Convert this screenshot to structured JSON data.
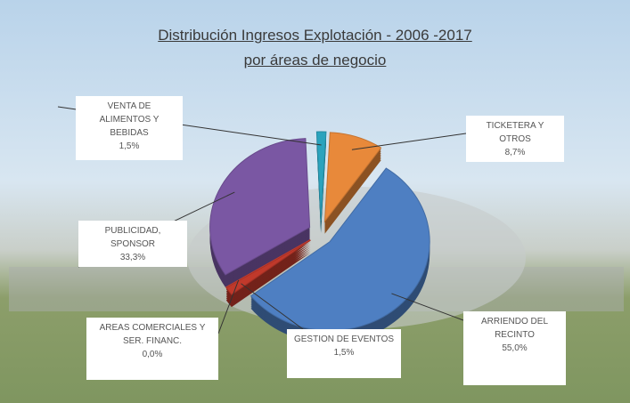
{
  "chart_data": {
    "type": "pie",
    "title": "Distribución Ingresos Explotación - 2006 -2017",
    "subtitle": "por áreas de negocio",
    "categories": [
      "TICKETERA Y OTROS",
      "ARRIENDO DEL RECINTO",
      "GESTION DE EVENTOS",
      "AREAS COMERCIALES Y SER. FINANC.",
      "PUBLICIDAD, SPONSOR",
      "VENTA DE ALIMENTOS Y BEBIDAS"
    ],
    "values": [
      8.7,
      55.0,
      1.5,
      0.0,
      33.3,
      1.5
    ],
    "value_labels": [
      "8,7%",
      "55,0%",
      "1,5%",
      "0,0%",
      "33,3%",
      "1,5%"
    ],
    "colors": [
      "#e8893a",
      "#4e7fc2",
      "#c0392b",
      "#c0392b",
      "#7a57a3",
      "#2ba3bd"
    ]
  }
}
